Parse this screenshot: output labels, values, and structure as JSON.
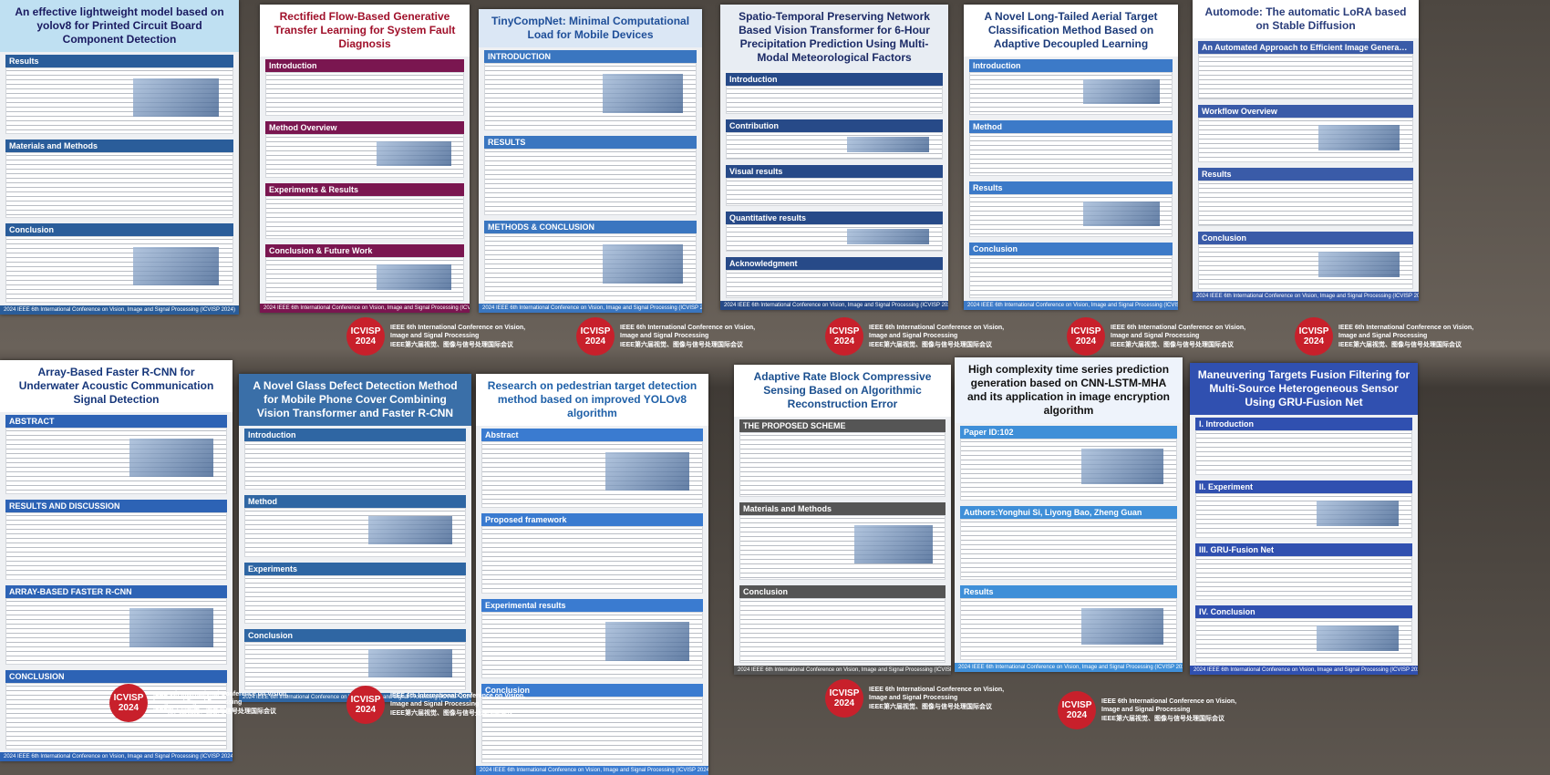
{
  "banner": {
    "logo": "ICVISP",
    "year": "2024",
    "conference": "IEEE 6th International Conference on Vision, Image and Signal Processing",
    "conference_cn": "IEEE第六届视觉、图像与信号处理国际会议",
    "footer": "2024 IEEE 6th International Conference on Vision, Image and Signal Processing (ICVISP 2024)"
  },
  "posters": [
    {
      "title": "An effective lightweight model based on yolov8 for Printed Circuit Board Component Detection",
      "sections": [
        "Results",
        "Materials and Methods",
        "Conclusion"
      ]
    },
    {
      "title": "Rectified Flow-Based Generative Transfer Learning for System Fault Diagnosis",
      "sections": [
        "Introduction",
        "Method Overview",
        "Experiments & Results",
        "Conclusion & Future Work"
      ]
    },
    {
      "title": "TinyCompNet: Minimal Computational Load for Mobile Devices",
      "sections": [
        "INTRODUCTION",
        "RESULTS",
        "METHODS & CONCLUSION"
      ]
    },
    {
      "title": "Spatio-Temporal Preserving Network Based Vision Transformer for 6-Hour Precipitation Prediction Using Multi-Modal Meteorological Factors",
      "sections": [
        "Introduction",
        "Contribution",
        "Visual results",
        "Quantitative results",
        "Acknowledgment"
      ]
    },
    {
      "title": "A Novel Long-Tailed Aerial Target Classification Method Based on Adaptive Decoupled Learning",
      "sections": [
        "Introduction",
        "Method",
        "Results",
        "Conclusion"
      ]
    },
    {
      "title": "Automode: The automatic LoRA based on Stable Diffusion",
      "sections": [
        "An Automated Approach to Efficient Image Generation Fine-Tuning",
        "Workflow Overview",
        "Results",
        "Conclusion"
      ]
    },
    {
      "title": "Array-Based Faster R-CNN for Underwater Acoustic Communication Signal Detection",
      "sections": [
        "ABSTRACT",
        "RESULTS AND DISCUSSION",
        "ARRAY-BASED FASTER R-CNN",
        "CONCLUSION"
      ]
    },
    {
      "title": "A Novel Glass Defect Detection Method for Mobile Phone Cover Combining Vision Transformer and Faster R-CNN",
      "sections": [
        "Introduction",
        "Method",
        "Experiments",
        "Conclusion"
      ]
    },
    {
      "title": "Research on pedestrian target detection method based on improved YOLOv8 algorithm",
      "sections": [
        "Abstract",
        "Proposed framework",
        "Experimental results",
        "Conclusion"
      ]
    },
    {
      "title": "Adaptive Rate Block Compressive Sensing Based on Algorithmic Reconstruction Error",
      "sections": [
        "THE PROPOSED SCHEME",
        "Materials and Methods",
        "Conclusion"
      ]
    },
    {
      "title": "High complexity time series prediction generation based on CNN-LSTM-MHA and its application in image encryption algorithm",
      "sections": [
        "Paper ID:102",
        "Authors:Yonghui Si, Liyong Bao, Zheng Guan",
        "Results"
      ]
    },
    {
      "title": "Maneuvering Targets Fusion Filtering for Multi-Source Heterogeneous Sensor Using GRU-Fusion Net",
      "sections": [
        "I. Introduction",
        "II. Experiment",
        "III. GRU-Fusion Net",
        "IV. Conclusion"
      ]
    }
  ]
}
